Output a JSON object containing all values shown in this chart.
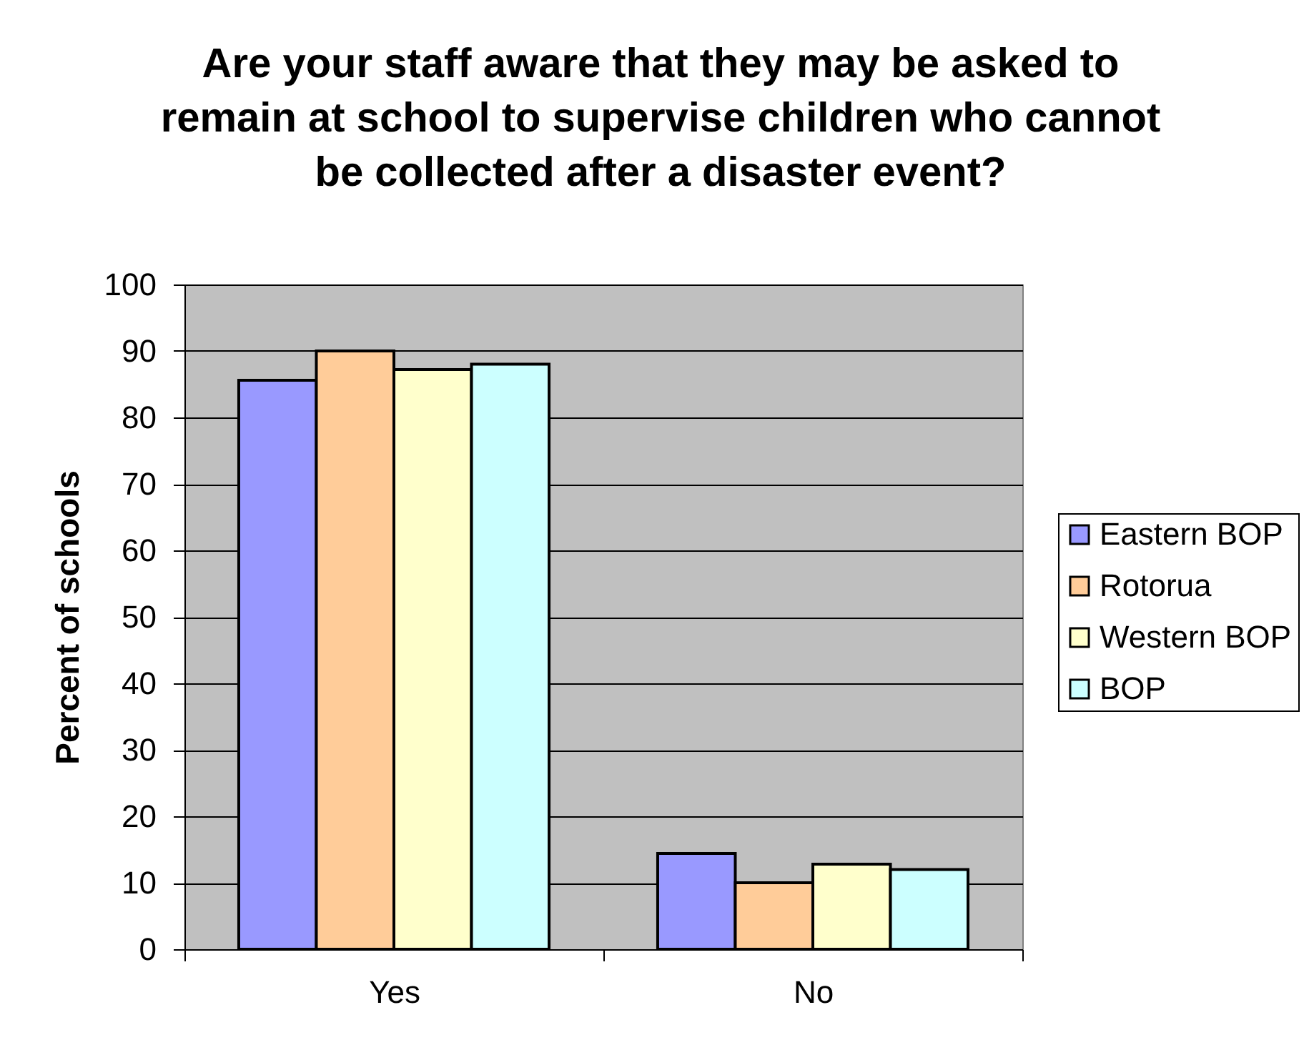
{
  "chart_data": {
    "type": "bar",
    "title": "Are your staff aware that they may be asked to remain at school to supervise children who cannot be collected after a disaster event?",
    "ylabel": "Percent of schools",
    "categories": [
      "Yes",
      "No"
    ],
    "series": [
      {
        "name": "Eastern BOP",
        "color": "#9999ff",
        "values": [
          85.6,
          14.4
        ]
      },
      {
        "name": "Rotorua",
        "color": "#ffcc99",
        "values": [
          90,
          10
        ]
      },
      {
        "name": "Western BOP",
        "color": "#ffffcc",
        "values": [
          87.2,
          12.8
        ]
      },
      {
        "name": "BOP",
        "color": "#ccffff",
        "values": [
          88,
          12
        ]
      }
    ],
    "ylim": [
      0,
      100
    ],
    "yticks": [
      0,
      10,
      20,
      30,
      40,
      50,
      60,
      70,
      80,
      90,
      100
    ],
    "grid": "y",
    "legend": "right"
  }
}
